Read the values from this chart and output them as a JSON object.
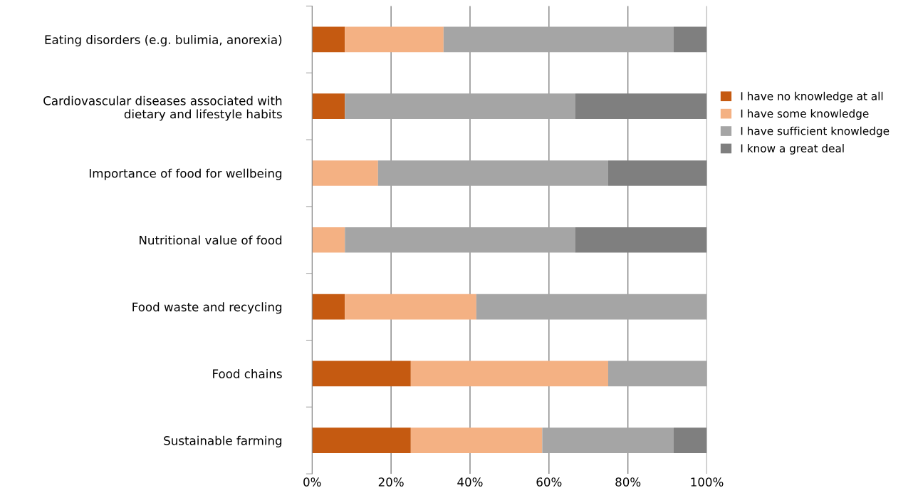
{
  "chart_data": {
    "type": "bar",
    "orientation": "horizontal",
    "stacked": true,
    "categories": [
      "Eating disorders (e.g. bulimia, anorexia)",
      "Cardiovascular diseases associated with dietary and lifestyle habits",
      "Importance of food for wellbeing",
      "Nutritional value of food",
      "Food waste and recycling",
      "Food chains",
      "Sustainable farming"
    ],
    "series": [
      {
        "name": "I have no knowledge at all",
        "color": "#c55a11",
        "values": [
          8.3,
          8.3,
          0,
          0,
          8.3,
          25,
          25
        ]
      },
      {
        "name": "I have some knowledge",
        "color": "#f4b183",
        "values": [
          25,
          0,
          16.7,
          8.3,
          33.3,
          50,
          33.3
        ]
      },
      {
        "name": "I have sufficient knowledge",
        "color": "#a5a5a5",
        "values": [
          58.3,
          58.3,
          58.3,
          58.3,
          58.3,
          25,
          33.3
        ]
      },
      {
        "name": "I know a great deal",
        "color": "#7f7f7f",
        "values": [
          8.3,
          33.3,
          25,
          33.3,
          0,
          0,
          8.3
        ]
      }
    ],
    "xlim": [
      0,
      100
    ],
    "xticks": [
      {
        "value": 0,
        "label": "0%"
      },
      {
        "value": 20,
        "label": "20%"
      },
      {
        "value": 40,
        "label": "40%"
      },
      {
        "value": 60,
        "label": "60%"
      },
      {
        "value": 80,
        "label": "80%"
      },
      {
        "value": 100,
        "label": "100%"
      }
    ],
    "grid": "x",
    "legend": "right"
  }
}
